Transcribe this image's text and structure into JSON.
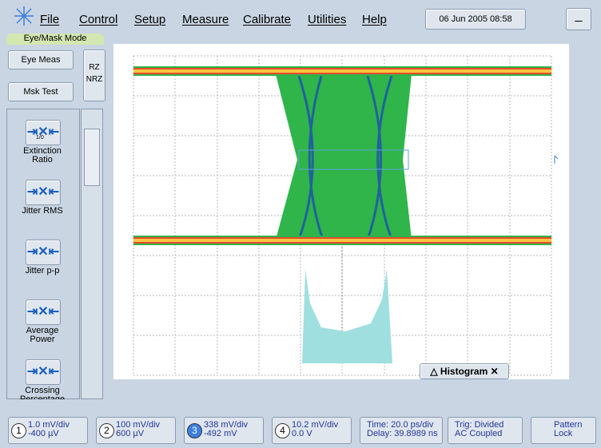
{
  "menu": {
    "items": [
      "File",
      "Control",
      "Setup",
      "Measure",
      "Calibrate",
      "Utilities",
      "Help"
    ],
    "datetime": "06 Jun 2005  08:58"
  },
  "mode_tab": "Eye/Mask Mode",
  "left_panel": {
    "toggles": [
      "Eye Meas",
      "Msk Test"
    ],
    "formats": [
      "RZ",
      "NRZ"
    ],
    "measurements": [
      {
        "icon": "1/0",
        "label": [
          "Extinction",
          "Ratio"
        ]
      },
      {
        "label": [
          "Jitter RMS"
        ]
      },
      {
        "label": [
          "Jitter p-p"
        ]
      },
      {
        "label": [
          "Average",
          "Power"
        ]
      },
      {
        "label": [
          "Crossing",
          "Percentage"
        ]
      }
    ]
  },
  "display": {
    "histogram_label": "Histogram"
  },
  "status_bar": {
    "channels": [
      {
        "number": "1",
        "scale": "1.0 mV/div",
        "offset": "-400 µV"
      },
      {
        "number": "2",
        "scale": "100 mV/div",
        "offset": "600 µV"
      },
      {
        "number": "3",
        "scale": "338 mV/div",
        "offset": "-492 mV"
      },
      {
        "number": "4",
        "scale": "10.2 mV/div",
        "offset": "0.0 V"
      }
    ],
    "time": [
      "Time: 20.0 ps/div",
      "Delay: 39.8989 ns"
    ],
    "trigger": [
      "Trig: Divided",
      "AC Coupled"
    ],
    "pattern_lock": [
      "Pattern",
      "Lock"
    ]
  }
}
